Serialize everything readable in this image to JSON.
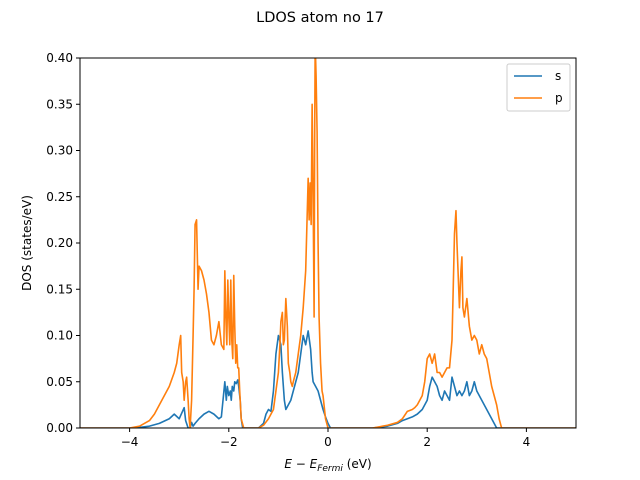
{
  "chart_data": {
    "type": "line",
    "title": "LDOS atom no 17",
    "xlabel_main": "E − E",
    "xlabel_sub": "Fermi",
    "xlabel_unit": " (eV)",
    "ylabel": "DOS (states/eV)",
    "xlim": [
      -5,
      5
    ],
    "ylim": [
      0,
      0.4
    ],
    "xticks": [
      -4,
      -2,
      0,
      2,
      4
    ],
    "yticks": [
      0.0,
      0.05,
      0.1,
      0.15,
      0.2,
      0.25,
      0.3,
      0.35,
      0.4
    ],
    "xtick_labels": [
      "−4",
      "−2",
      "0",
      "2",
      "4"
    ],
    "ytick_labels": [
      "0.00",
      "0.05",
      "0.10",
      "0.15",
      "0.20",
      "0.25",
      "0.30",
      "0.35",
      "0.40"
    ],
    "grid": false,
    "legend_position": "top-right",
    "series": [
      {
        "name": "s",
        "color": "#1f77b4",
        "x": [
          -5.0,
          -3.9,
          -3.6,
          -3.4,
          -3.2,
          -3.1,
          -3.0,
          -2.9,
          -2.87,
          -2.82,
          -2.78,
          -2.75,
          -2.72,
          -2.68,
          -2.6,
          -2.5,
          -2.4,
          -2.3,
          -2.2,
          -2.15,
          -2.08,
          -2.05,
          -2.03,
          -2.0,
          -1.97,
          -1.95,
          -1.93,
          -1.9,
          -1.88,
          -1.85,
          -1.82,
          -1.8,
          -1.77,
          -1.75,
          -1.72,
          -1.68,
          -1.65,
          -1.6,
          -1.5,
          -1.4,
          -1.3,
          -1.25,
          -1.2,
          -1.15,
          -1.1,
          -1.05,
          -1.0,
          -0.95,
          -0.92,
          -0.88,
          -0.85,
          -0.8,
          -0.75,
          -0.7,
          -0.65,
          -0.6,
          -0.55,
          -0.5,
          -0.45,
          -0.4,
          -0.35,
          -0.32,
          -0.3,
          -0.25,
          -0.2,
          -0.15,
          -0.1,
          -0.05,
          0.0,
          0.05,
          0.1,
          0.5,
          0.9,
          1.2,
          1.4,
          1.5,
          1.6,
          1.7,
          1.8,
          1.9,
          2.0,
          2.05,
          2.1,
          2.15,
          2.2,
          2.25,
          2.3,
          2.35,
          2.4,
          2.45,
          2.5,
          2.55,
          2.6,
          2.65,
          2.7,
          2.75,
          2.8,
          2.85,
          2.9,
          2.95,
          3.0,
          3.05,
          3.1,
          3.15,
          3.2,
          3.3,
          3.4,
          3.5,
          5.0
        ],
        "values": [
          0,
          0,
          0.002,
          0.005,
          0.01,
          0.015,
          0.01,
          0.022,
          0.008,
          0,
          0,
          0.006,
          0.002,
          0.005,
          0.01,
          0.015,
          0.018,
          0.015,
          0.01,
          0.012,
          0.05,
          0.03,
          0.045,
          0.035,
          0.04,
          0.03,
          0.045,
          0.04,
          0.05,
          0.048,
          0.052,
          0.045,
          0.03,
          0.01,
          0,
          0,
          0,
          0,
          0,
          0,
          0.005,
          0.015,
          0.02,
          0.018,
          0.04,
          0.08,
          0.1,
          0.09,
          0.06,
          0.03,
          0.02,
          0.025,
          0.03,
          0.04,
          0.05,
          0.06,
          0.08,
          0.1,
          0.09,
          0.105,
          0.085,
          0.06,
          0.05,
          0.045,
          0.04,
          0.03,
          0.02,
          0.012,
          0.005,
          0,
          0,
          0,
          0,
          0.002,
          0.005,
          0.008,
          0.01,
          0.012,
          0.015,
          0.02,
          0.03,
          0.045,
          0.055,
          0.05,
          0.045,
          0.035,
          0.03,
          0.04,
          0.035,
          0.03,
          0.055,
          0.045,
          0.035,
          0.04,
          0.035,
          0.04,
          0.05,
          0.035,
          0.04,
          0.05,
          0.04,
          0.035,
          0.03,
          0.025,
          0.02,
          0.01,
          0,
          0,
          0
        ]
      },
      {
        "name": "p",
        "color": "#ff7f0e",
        "x": [
          -5.0,
          -4.0,
          -3.8,
          -3.6,
          -3.5,
          -3.4,
          -3.3,
          -3.2,
          -3.1,
          -3.05,
          -3.0,
          -2.97,
          -2.95,
          -2.92,
          -2.9,
          -2.87,
          -2.85,
          -2.82,
          -2.8,
          -2.78,
          -2.75,
          -2.72,
          -2.7,
          -2.68,
          -2.65,
          -2.62,
          -2.6,
          -2.55,
          -2.5,
          -2.45,
          -2.4,
          -2.35,
          -2.3,
          -2.25,
          -2.2,
          -2.15,
          -2.1,
          -2.08,
          -2.06,
          -2.04,
          -2.02,
          -2.0,
          -1.98,
          -1.96,
          -1.94,
          -1.92,
          -1.9,
          -1.88,
          -1.86,
          -1.84,
          -1.82,
          -1.8,
          -1.78,
          -1.75,
          -1.7,
          -1.65,
          -1.6,
          -1.5,
          -1.4,
          -1.3,
          -1.2,
          -1.1,
          -1.05,
          -1.0,
          -0.97,
          -0.95,
          -0.92,
          -0.9,
          -0.88,
          -0.85,
          -0.82,
          -0.8,
          -0.77,
          -0.75,
          -0.72,
          -0.7,
          -0.65,
          -0.6,
          -0.55,
          -0.5,
          -0.45,
          -0.4,
          -0.38,
          -0.36,
          -0.34,
          -0.32,
          -0.3,
          -0.28,
          -0.27,
          -0.26,
          -0.25,
          -0.24,
          -0.22,
          -0.2,
          -0.18,
          -0.15,
          -0.12,
          -0.1,
          -0.07,
          -0.05,
          0.0,
          0.5,
          0.9,
          1.2,
          1.4,
          1.5,
          1.6,
          1.7,
          1.75,
          1.8,
          1.85,
          1.9,
          1.95,
          2.0,
          2.05,
          2.1,
          2.15,
          2.2,
          2.25,
          2.3,
          2.35,
          2.4,
          2.45,
          2.5,
          2.52,
          2.55,
          2.58,
          2.6,
          2.65,
          2.68,
          2.7,
          2.72,
          2.75,
          2.8,
          2.85,
          2.9,
          2.95,
          3.0,
          3.05,
          3.1,
          3.15,
          3.2,
          3.25,
          3.3,
          3.35,
          3.4,
          3.45,
          3.5,
          5.0
        ],
        "values": [
          0,
          0,
          0.002,
          0.008,
          0.015,
          0.025,
          0.035,
          0.045,
          0.06,
          0.07,
          0.09,
          0.1,
          0.06,
          0.05,
          0.03,
          0.05,
          0.055,
          0.03,
          0.01,
          0,
          0.03,
          0.1,
          0.15,
          0.22,
          0.225,
          0.15,
          0.175,
          0.17,
          0.16,
          0.145,
          0.125,
          0.095,
          0.09,
          0.1,
          0.115,
          0.09,
          0.085,
          0.17,
          0.12,
          0.09,
          0.16,
          0.12,
          0.09,
          0.16,
          0.095,
          0.075,
          0.165,
          0.11,
          0.07,
          0.09,
          0.065,
          0.065,
          0.04,
          0.01,
          0,
          0,
          0,
          0,
          0,
          0.003,
          0.01,
          0.02,
          0.04,
          0.06,
          0.09,
          0.115,
          0.125,
          0.09,
          0.095,
          0.14,
          0.11,
          0.07,
          0.06,
          0.05,
          0.045,
          0.05,
          0.06,
          0.08,
          0.1,
          0.13,
          0.17,
          0.27,
          0.225,
          0.265,
          0.22,
          0.35,
          0.25,
          0.12,
          0.3,
          0.4,
          0.4,
          0.38,
          0.32,
          0.2,
          0.12,
          0.07,
          0.04,
          0.035,
          0.02,
          0.01,
          0,
          0,
          0,
          0.003,
          0.006,
          0.01,
          0.018,
          0.02,
          0.022,
          0.025,
          0.03,
          0.035,
          0.05,
          0.075,
          0.08,
          0.07,
          0.08,
          0.06,
          0.06,
          0.055,
          0.06,
          0.065,
          0.065,
          0.095,
          0.14,
          0.21,
          0.235,
          0.2,
          0.13,
          0.17,
          0.185,
          0.13,
          0.12,
          0.14,
          0.11,
          0.095,
          0.1,
          0.095,
          0.08,
          0.09,
          0.08,
          0.075,
          0.06,
          0.045,
          0.035,
          0.025,
          0.01,
          0,
          0
        ]
      }
    ]
  }
}
